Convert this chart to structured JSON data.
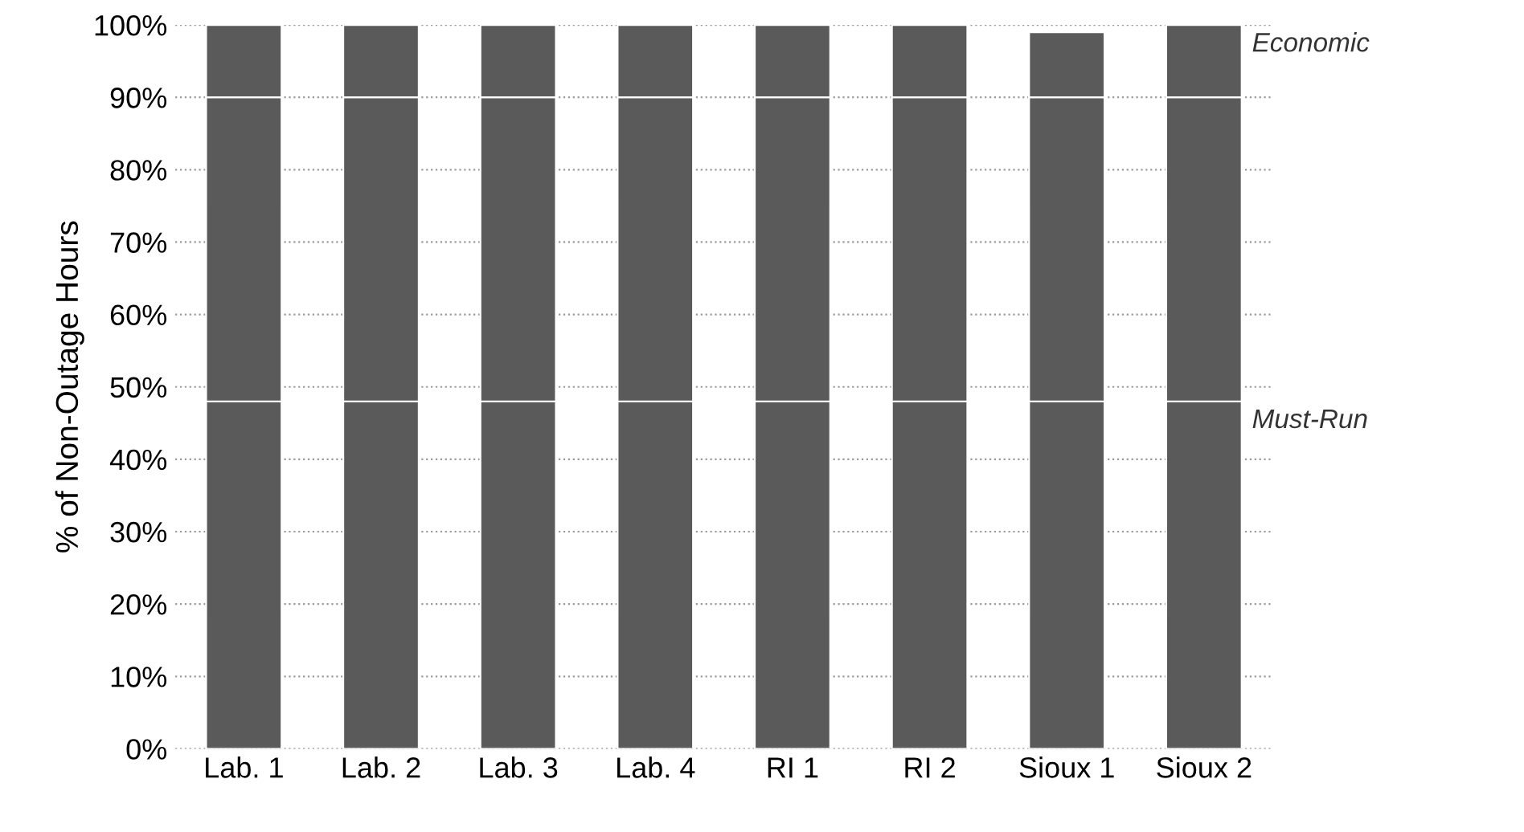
{
  "chart_data": {
    "type": "bar",
    "stacked": true,
    "ylabel": "% of Non-Outage Hours",
    "categories": [
      "Lab. 1",
      "Lab. 2",
      "Lab. 3",
      "Lab. 4",
      "RI 1",
      "RI 2",
      "Sioux 1",
      "Sioux 2"
    ],
    "series": [
      {
        "name": "Must-Run",
        "color": "#5a5a5a",
        "values": [
          48,
          48,
          48,
          48,
          48,
          48,
          48,
          48
        ]
      },
      {
        "color": "#5a5a5a",
        "values": [
          42,
          42,
          42,
          42,
          42,
          42,
          42,
          42
        ]
      },
      {
        "name": "Economic",
        "color": "#5a5a5a",
        "values": [
          10,
          10,
          10,
          10,
          10,
          10,
          9,
          10
        ]
      }
    ],
    "ylim": [
      0,
      100
    ],
    "yticks": [
      {
        "value": 0,
        "label": "0%"
      },
      {
        "value": 10,
        "label": "10%"
      },
      {
        "value": 20,
        "label": "20%"
      },
      {
        "value": 30,
        "label": "30%"
      },
      {
        "value": 40,
        "label": "40%"
      },
      {
        "value": 50,
        "label": "50%"
      },
      {
        "value": 60,
        "label": "60%"
      },
      {
        "value": 70,
        "label": "70%"
      },
      {
        "value": 80,
        "label": "80%"
      },
      {
        "value": 90,
        "label": "90%"
      },
      {
        "value": 100,
        "label": "100%"
      }
    ],
    "grid": "y"
  }
}
